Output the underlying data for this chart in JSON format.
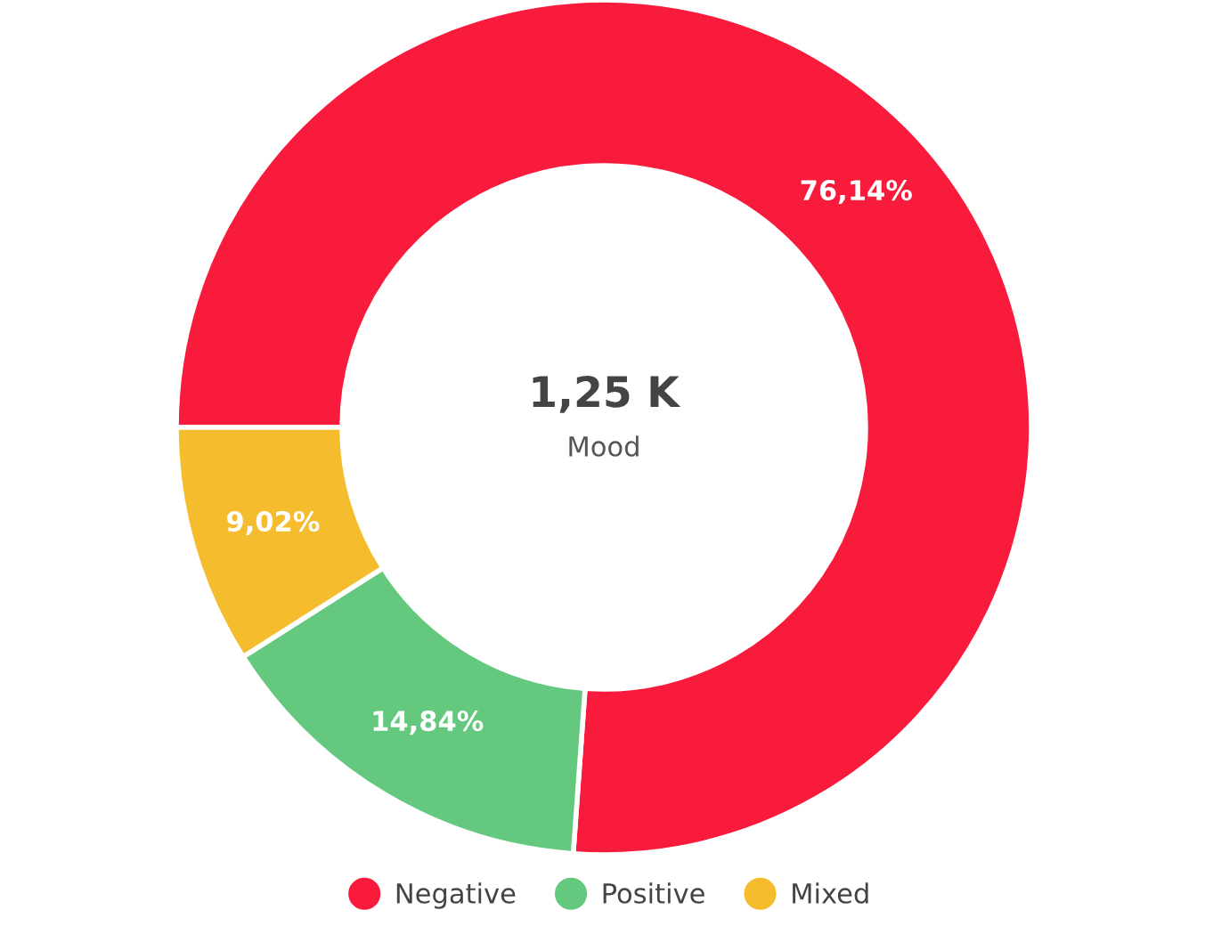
{
  "chart_data": {
    "type": "donut",
    "title": "1,25 K",
    "subtitle": "Mood",
    "categories": [
      "Negative",
      "Positive",
      "Mixed"
    ],
    "values": [
      76.14,
      14.84,
      9.02
    ],
    "colors": [
      "#f81b3c",
      "#64c97e",
      "#f5bd2e"
    ],
    "value_labels": [
      "76,14%",
      "14,84%",
      "9,02%"
    ],
    "legend": "bottom"
  }
}
